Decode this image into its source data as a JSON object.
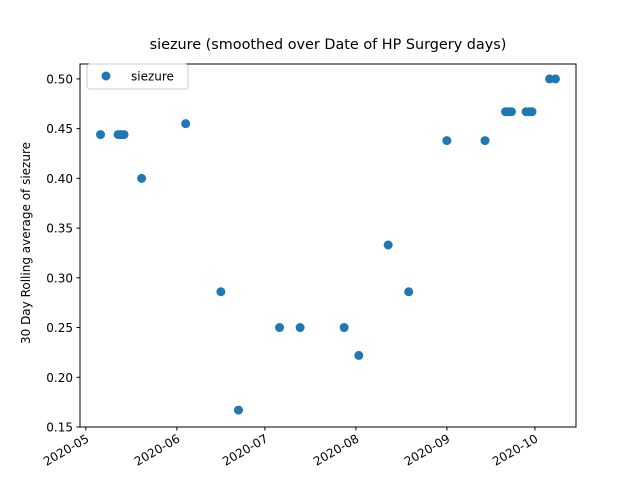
{
  "chart_data": {
    "type": "scatter",
    "title": "siezure (smoothed over Date of HP Surgery days)",
    "xlabel": "",
    "ylabel": "30 Day Rolling average of siezure",
    "xlim": [
      "2020-04-29",
      "2020-10-15"
    ],
    "ylim": [
      0.15,
      0.515
    ],
    "x_ticks": [
      "2020-05-01",
      "2020-06-01",
      "2020-07-01",
      "2020-08-01",
      "2020-09-01",
      "2020-10-01"
    ],
    "x_tick_labels": [
      "2020-05",
      "2020-06",
      "2020-07",
      "2020-08",
      "2020-09",
      "2020-10"
    ],
    "y_ticks": [
      0.15,
      0.2,
      0.25,
      0.3,
      0.35,
      0.4,
      0.45,
      0.5
    ],
    "y_tick_labels": [
      "0.15",
      "0.20",
      "0.25",
      "0.30",
      "0.35",
      "0.40",
      "0.45",
      "0.50"
    ],
    "grid": false,
    "legend_position": "top-left",
    "series": [
      {
        "name": "siezure",
        "color": "#1f77b4",
        "points": [
          {
            "x": "2020-05-06",
            "y": 0.444
          },
          {
            "x": "2020-05-12",
            "y": 0.444
          },
          {
            "x": "2020-05-13",
            "y": 0.444
          },
          {
            "x": "2020-05-14",
            "y": 0.444
          },
          {
            "x": "2020-05-20",
            "y": 0.4
          },
          {
            "x": "2020-06-04",
            "y": 0.455
          },
          {
            "x": "2020-06-16",
            "y": 0.286
          },
          {
            "x": "2020-06-22",
            "y": 0.167
          },
          {
            "x": "2020-07-06",
            "y": 0.25
          },
          {
            "x": "2020-07-13",
            "y": 0.25
          },
          {
            "x": "2020-07-28",
            "y": 0.25
          },
          {
            "x": "2020-08-02",
            "y": 0.222
          },
          {
            "x": "2020-08-12",
            "y": 0.333
          },
          {
            "x": "2020-08-19",
            "y": 0.286
          },
          {
            "x": "2020-09-01",
            "y": 0.438
          },
          {
            "x": "2020-09-14",
            "y": 0.438
          },
          {
            "x": "2020-09-21",
            "y": 0.467
          },
          {
            "x": "2020-09-22",
            "y": 0.467
          },
          {
            "x": "2020-09-23",
            "y": 0.467
          },
          {
            "x": "2020-09-28",
            "y": 0.467
          },
          {
            "x": "2020-09-29",
            "y": 0.467
          },
          {
            "x": "2020-09-30",
            "y": 0.467
          },
          {
            "x": "2020-10-06",
            "y": 0.5
          },
          {
            "x": "2020-10-08",
            "y": 0.5
          }
        ]
      }
    ]
  }
}
